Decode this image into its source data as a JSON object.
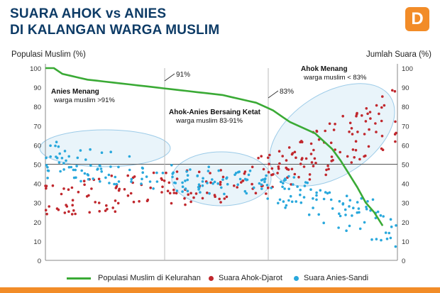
{
  "header": {
    "title_line1": "SUARA AHOK vs ANIES",
    "title_line2": "DI KALANGAN WARGA MUSLIM",
    "logo_letter": "D"
  },
  "chart_data": {
    "type": "scatter",
    "ylabel_left": "Populasi Muslim (%)",
    "ylabel_right": "Jumlah Suara (%)",
    "ylim": [
      0,
      100
    ],
    "y_ticks": [
      "0",
      "10",
      "20",
      "30",
      "40",
      "50",
      "60",
      "70",
      "80",
      "90",
      "100"
    ],
    "grid": false,
    "reference_line_y": 50,
    "dividers": [
      {
        "label": "91%",
        "at_muslim_pct": 91
      },
      {
        "label": "83%",
        "at_muslim_pct": 83
      }
    ],
    "zones": [
      {
        "title": "Anies Menang",
        "subtitle": "warga muslim >91%"
      },
      {
        "title": "Ahok-Anies Bersaing Ketat",
        "subtitle": "warga muslim 83-91%"
      },
      {
        "title": "Ahok Menang",
        "subtitle": "warga muslim < 83%"
      }
    ],
    "legend_position": "bottom",
    "series": [
      {
        "name": "Populasi Muslim di Kelurahan",
        "kind": "line",
        "color": "#3aaa35",
        "values": [
          100,
          100,
          97,
          96,
          95,
          94,
          93.5,
          93,
          92.5,
          92,
          91.5,
          91,
          90.5,
          90,
          89.5,
          89,
          88.5,
          88,
          87.5,
          87,
          86.5,
          86,
          85,
          84,
          83,
          82,
          80,
          78,
          75,
          72,
          70,
          68,
          66,
          62,
          58,
          52,
          45,
          38,
          30,
          25,
          18
        ]
      },
      {
        "name": "Suara Ahok-Djarot",
        "kind": "scatter",
        "color": "#c0272d",
        "band": [
          [
            0,
            24,
            40
          ],
          [
            16,
            24,
            44
          ],
          [
            35,
            28,
            48
          ],
          [
            54,
            30,
            50
          ],
          [
            66,
            36,
            58
          ],
          [
            81,
            45,
            72
          ],
          [
            100,
            60,
            90
          ]
        ]
      },
      {
        "name": "Suara Anies-Sandi",
        "kind": "scatter",
        "color": "#29a8dc",
        "band": [
          [
            0,
            42,
            64
          ],
          [
            16,
            40,
            58
          ],
          [
            35,
            36,
            50
          ],
          [
            54,
            34,
            48
          ],
          [
            66,
            28,
            46
          ],
          [
            81,
            18,
            38
          ],
          [
            100,
            6,
            28
          ]
        ]
      }
    ]
  }
}
